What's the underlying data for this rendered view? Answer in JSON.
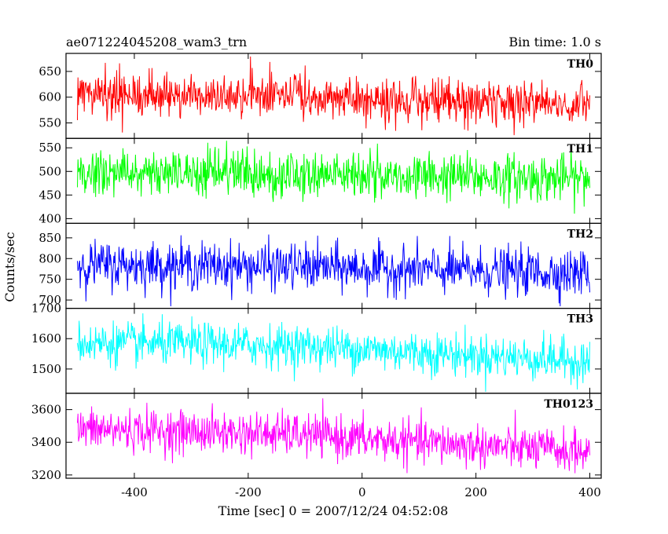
{
  "header": {
    "title": "ae071224045208_wam3_trn",
    "bin_time": "Bin time: 1.0 s"
  },
  "chart_data": {
    "type": "line",
    "title": "ae071224045208_wam3_trn",
    "subtitle": "Bin time: 1.0 s",
    "xlabel": "Time [sec] 0 = 2007/12/24 04:52:08",
    "ylabel": "Counts/sec",
    "xlim": [
      -520,
      420
    ],
    "x_ticks": [
      -400,
      -200,
      0,
      200,
      400
    ],
    "x_range_data": [
      -500,
      400
    ],
    "bin_seconds": 1.0,
    "grid": false,
    "panels": [
      {
        "name": "TH0",
        "color": "#ff0000",
        "ylim": [
          520,
          685
        ],
        "y_ticks": [
          550,
          600,
          650
        ],
        "trend": [
          [
            -500,
            605
          ],
          [
            -300,
            603
          ],
          [
            -100,
            600
          ],
          [
            0,
            596
          ],
          [
            200,
            590
          ],
          [
            400,
            585
          ]
        ],
        "noise_sd": 22,
        "observed_range": [
          525,
          680
        ]
      },
      {
        "name": "TH1",
        "color": "#00ff00",
        "ylim": [
          390,
          570
        ],
        "y_ticks": [
          400,
          450,
          500,
          550
        ],
        "trend": [
          [
            -500,
            497
          ],
          [
            -300,
            496
          ],
          [
            -100,
            494
          ],
          [
            0,
            492
          ],
          [
            200,
            488
          ],
          [
            400,
            485
          ]
        ],
        "noise_sd": 25,
        "observed_range": [
          395,
          565
        ]
      },
      {
        "name": "TH2",
        "color": "#0000ff",
        "ylim": [
          680,
          885
        ],
        "y_ticks": [
          700,
          750,
          800,
          850
        ],
        "trend": [
          [
            -500,
            785
          ],
          [
            -300,
            783
          ],
          [
            -100,
            780
          ],
          [
            0,
            776
          ],
          [
            200,
            770
          ],
          [
            400,
            765
          ]
        ],
        "noise_sd": 28,
        "observed_range": [
          685,
          880
        ]
      },
      {
        "name": "TH3",
        "color": "#00ffff",
        "ylim": [
          1420,
          1700
        ],
        "y_ticks": [
          1500,
          1600,
          1700
        ],
        "trend": [
          [
            -500,
            1585
          ],
          [
            -300,
            1582
          ],
          [
            -100,
            1575
          ],
          [
            0,
            1565
          ],
          [
            200,
            1545
          ],
          [
            400,
            1525
          ]
        ],
        "noise_sd": 35,
        "observed_range": [
          1425,
          1700
        ]
      },
      {
        "name": "TH0123",
        "color": "#ff00ff",
        "ylim": [
          3180,
          3700
        ],
        "y_ticks": [
          3200,
          3400,
          3600
        ],
        "trend": [
          [
            -500,
            3480
          ],
          [
            -300,
            3465
          ],
          [
            -100,
            3445
          ],
          [
            0,
            3420
          ],
          [
            200,
            3380
          ],
          [
            400,
            3340
          ]
        ],
        "noise_sd": 65,
        "observed_range": [
          3185,
          3690
        ]
      }
    ]
  }
}
